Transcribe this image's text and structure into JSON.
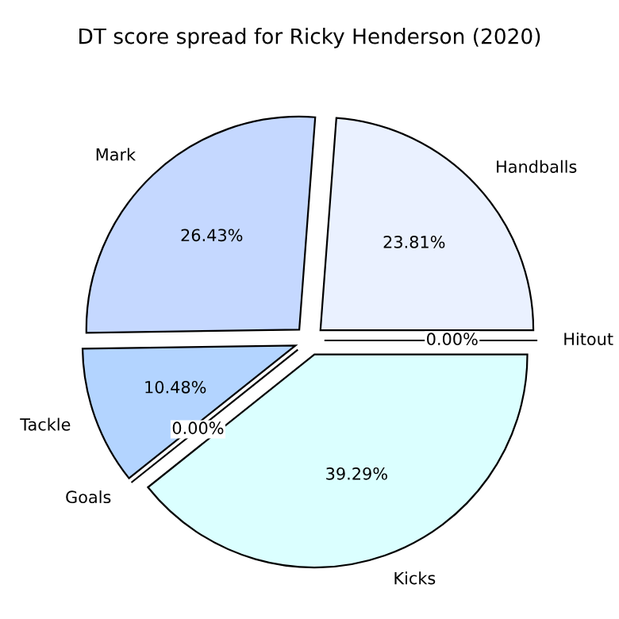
{
  "chart_data": {
    "type": "pie",
    "title": "DT score spread for Ricky Henderson (2020)",
    "categories": [
      "Handballs",
      "Mark",
      "Tackle",
      "Goals",
      "Kicks",
      "Hitout"
    ],
    "values": [
      23.81,
      26.43,
      10.48,
      0,
      39.29,
      0
    ],
    "value_labels": [
      "23.81%",
      "26.43%",
      "10.48%",
      "0.00%",
      "39.29%",
      "0.00%"
    ],
    "colors": [
      "#eaf1ff",
      "#c5d8ff",
      "#b3d4ff",
      "#c8c8ff",
      "#dbffff",
      "#e0e8ff"
    ]
  }
}
